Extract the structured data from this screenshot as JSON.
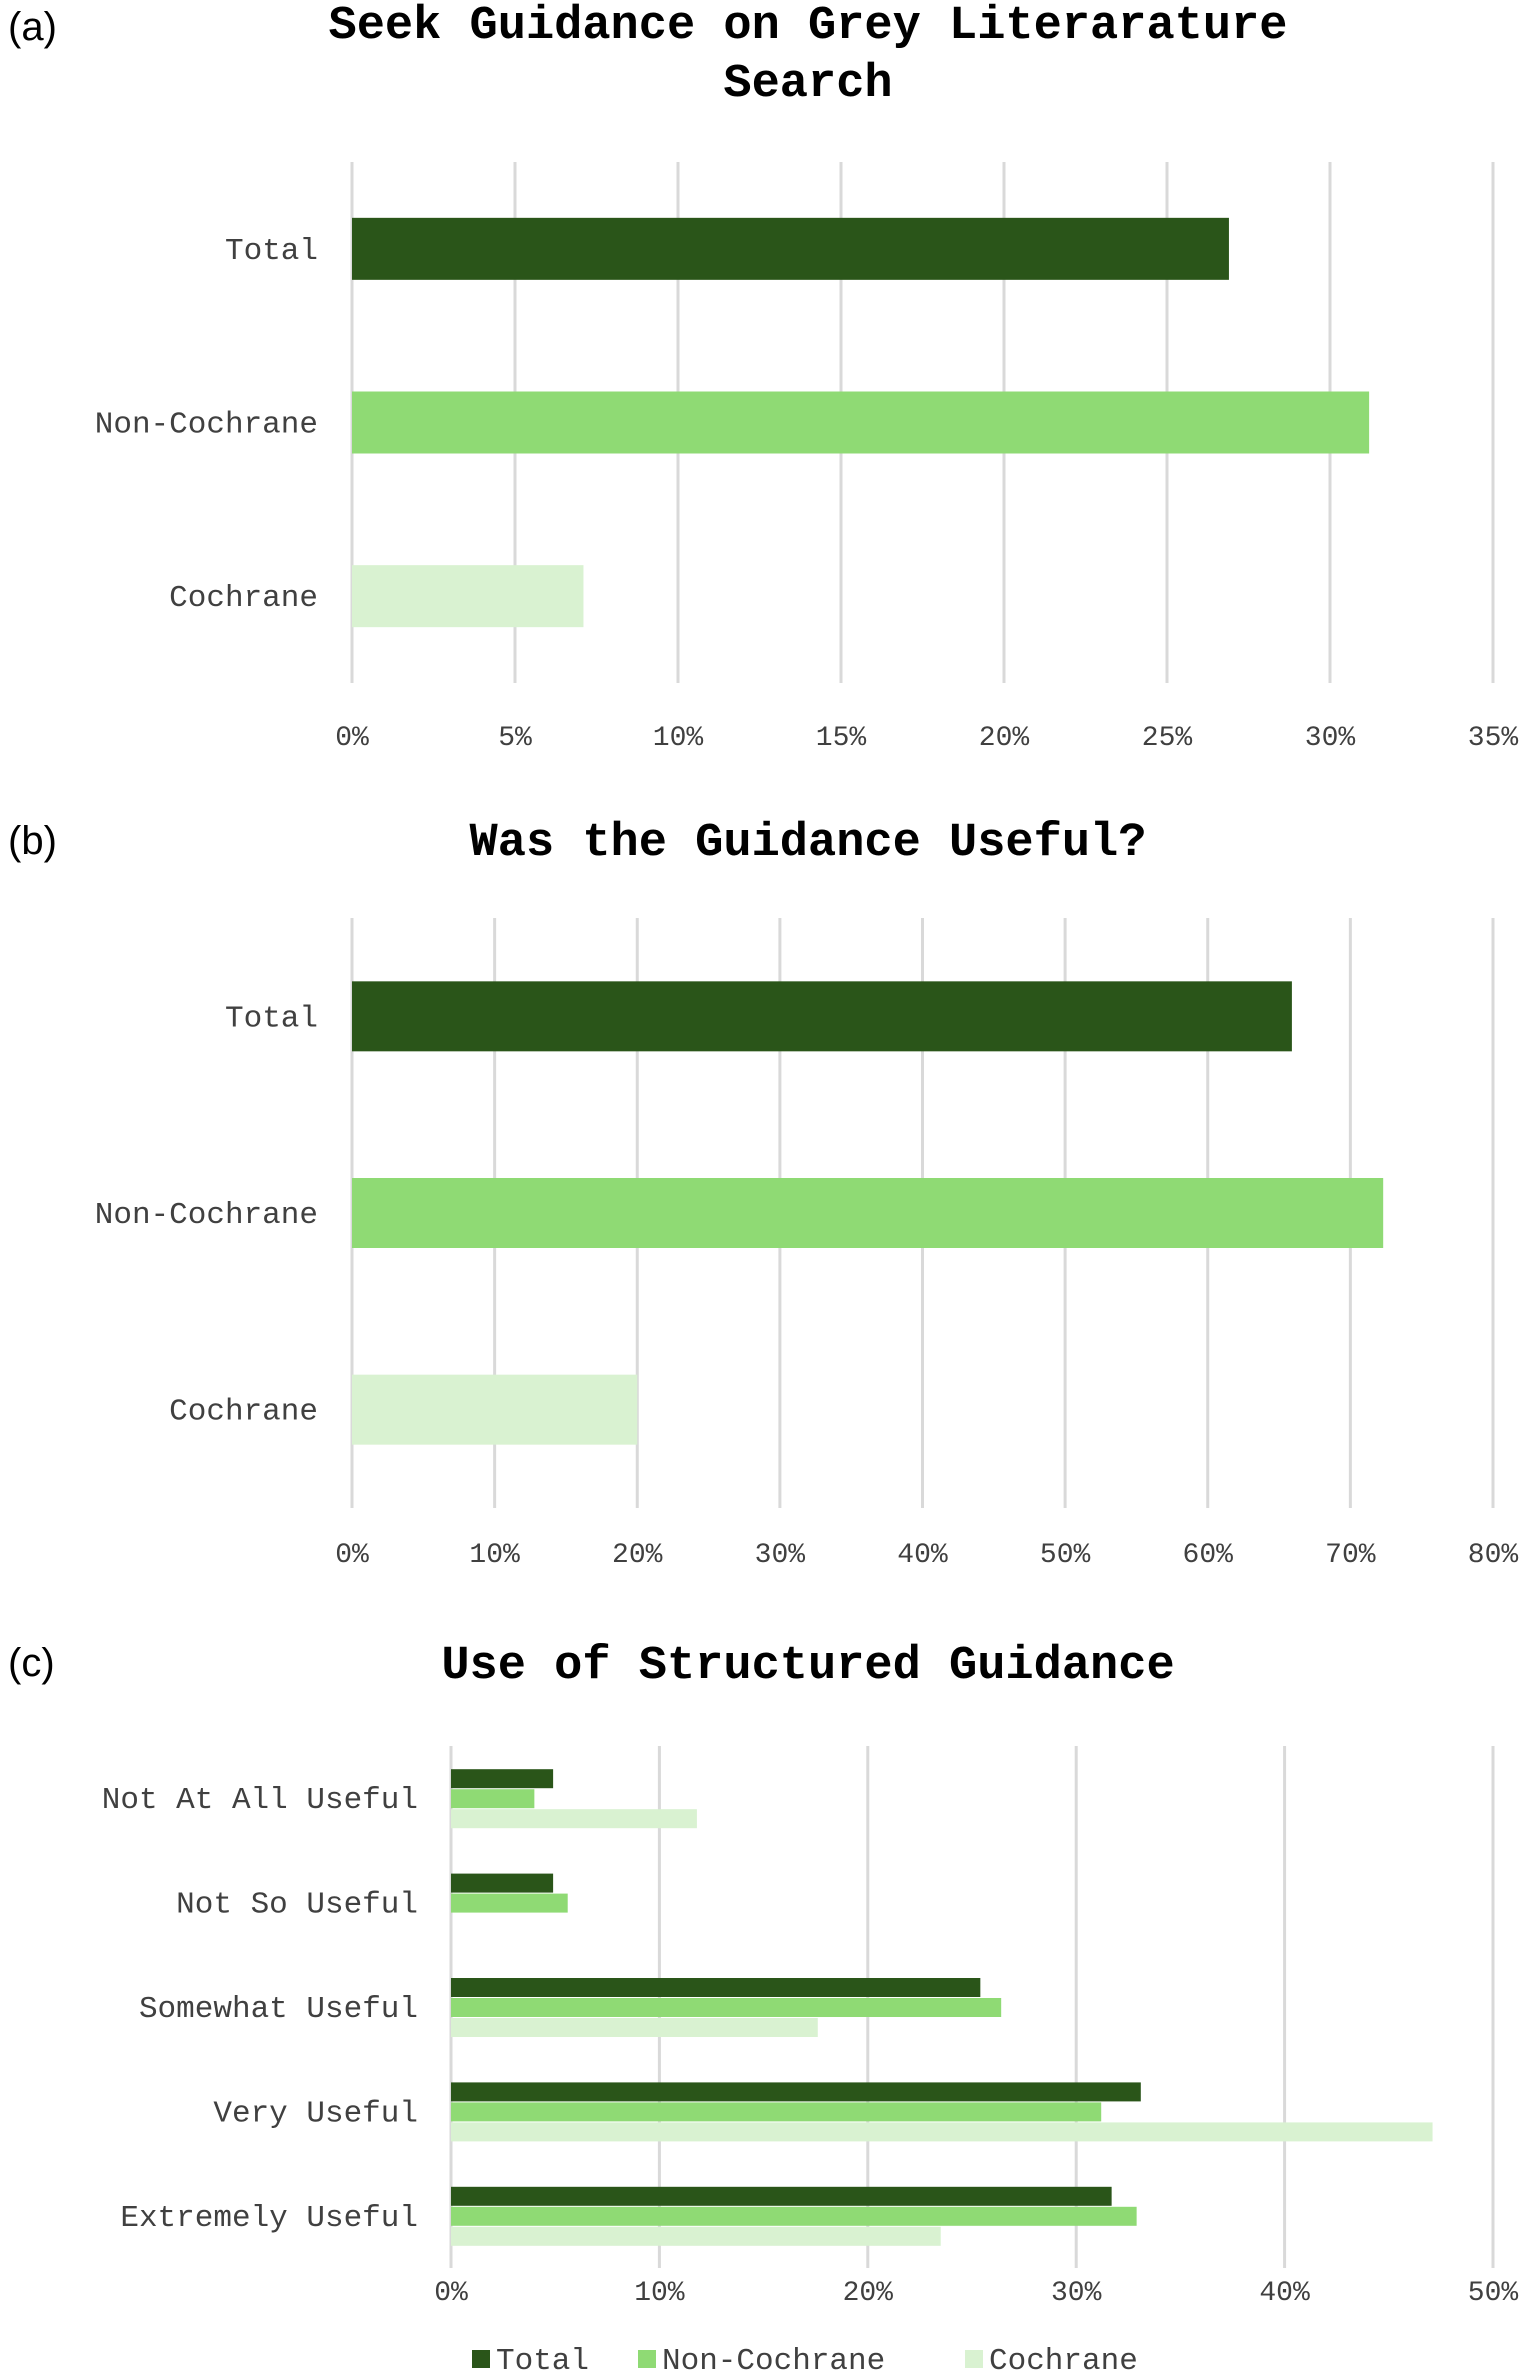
{
  "colors": {
    "Total": "#2a5519",
    "Non-Cochrane": "#8fda74",
    "Cochrane": "#d9f2d1",
    "grid": "#d9d9d9",
    "text": "#404040"
  },
  "chart_data": [
    {
      "type": "bar",
      "orientation": "horizontal",
      "panel": "(a)",
      "title_lines": [
        "Seek Guidance on Grey Literarature",
        "Search"
      ],
      "categories": [
        "Total",
        "Non-Cochrane",
        "Cochrane"
      ],
      "values": [
        26.9,
        31.2,
        7.1
      ],
      "xlim": [
        0,
        35
      ],
      "xticks": [
        0,
        5,
        10,
        15,
        20,
        25,
        30,
        35
      ],
      "tick_suffix": "%",
      "grid": true
    },
    {
      "type": "bar",
      "orientation": "horizontal",
      "panel": "(b)",
      "title_lines": [
        "Was the Guidance Useful?"
      ],
      "categories": [
        "Total",
        "Non-Cochrane",
        "Cochrane"
      ],
      "values": [
        65.9,
        72.3,
        20.0
      ],
      "xlim": [
        0,
        80
      ],
      "xticks": [
        0,
        10,
        20,
        30,
        40,
        50,
        60,
        70,
        80
      ],
      "tick_suffix": "%",
      "grid": true
    },
    {
      "type": "bar",
      "orientation": "horizontal",
      "panel": "(c)",
      "title_lines": [
        "Use of Structured Guidance"
      ],
      "categories": [
        "Not At All Useful",
        "Not So Useful",
        "Somewhat Useful",
        "Very Useful",
        "Extremely Useful"
      ],
      "series": [
        {
          "name": "Total",
          "values": [
            4.9,
            4.9,
            25.4,
            33.1,
            31.7
          ]
        },
        {
          "name": "Non-Cochrane",
          "values": [
            4.0,
            5.6,
            26.4,
            31.2,
            32.9
          ]
        },
        {
          "name": "Cochrane",
          "values": [
            11.8,
            0,
            17.6,
            47.1,
            23.5
          ]
        }
      ],
      "xlim": [
        0,
        50
      ],
      "xticks": [
        0,
        10,
        20,
        30,
        40,
        50
      ],
      "tick_suffix": "%",
      "grid": true,
      "legend_position": "bottom"
    }
  ]
}
